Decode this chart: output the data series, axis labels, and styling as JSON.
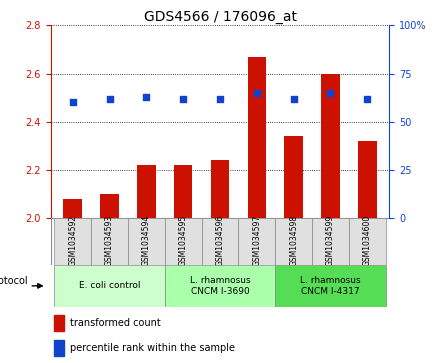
{
  "title": "GDS4566 / 176096_at",
  "samples": [
    "GSM1034592",
    "GSM1034593",
    "GSM1034594",
    "GSM1034595",
    "GSM1034596",
    "GSM1034597",
    "GSM1034598",
    "GSM1034599",
    "GSM1034600"
  ],
  "transformed_count": [
    2.08,
    2.1,
    2.22,
    2.22,
    2.24,
    2.67,
    2.34,
    2.6,
    2.32
  ],
  "percentile_rank": [
    60,
    62,
    63,
    62,
    62,
    65,
    62,
    65,
    62
  ],
  "bar_color": "#cc1100",
  "dot_color": "#1144cc",
  "ylim_left": [
    2.0,
    2.8
  ],
  "ylim_right": [
    0,
    100
  ],
  "yticks_left": [
    2.0,
    2.2,
    2.4,
    2.6,
    2.8
  ],
  "yticks_right": [
    0,
    25,
    50,
    75,
    100
  ],
  "groups": [
    {
      "label": "E. coli control",
      "start": 0,
      "end": 3,
      "color": "#ccffcc"
    },
    {
      "label": "L. rhamnosus\nCNCM I-3690",
      "start": 3,
      "end": 6,
      "color": "#aaffaa"
    },
    {
      "label": "L. rhamnosus\nCNCM I-4317",
      "start": 6,
      "end": 9,
      "color": "#55dd55"
    }
  ],
  "protocol_label": "protocol",
  "legend_bar_label": "transformed count",
  "legend_dot_label": "percentile rank within the sample",
  "title_fontsize": 10,
  "tick_fontsize": 7,
  "sample_fontsize": 5.5,
  "group_fontsize": 6.5,
  "legend_fontsize": 7,
  "protocol_fontsize": 7,
  "bar_width": 0.5,
  "sample_box_color": "#e0e0e0",
  "spine_bottom_color": "#888888"
}
